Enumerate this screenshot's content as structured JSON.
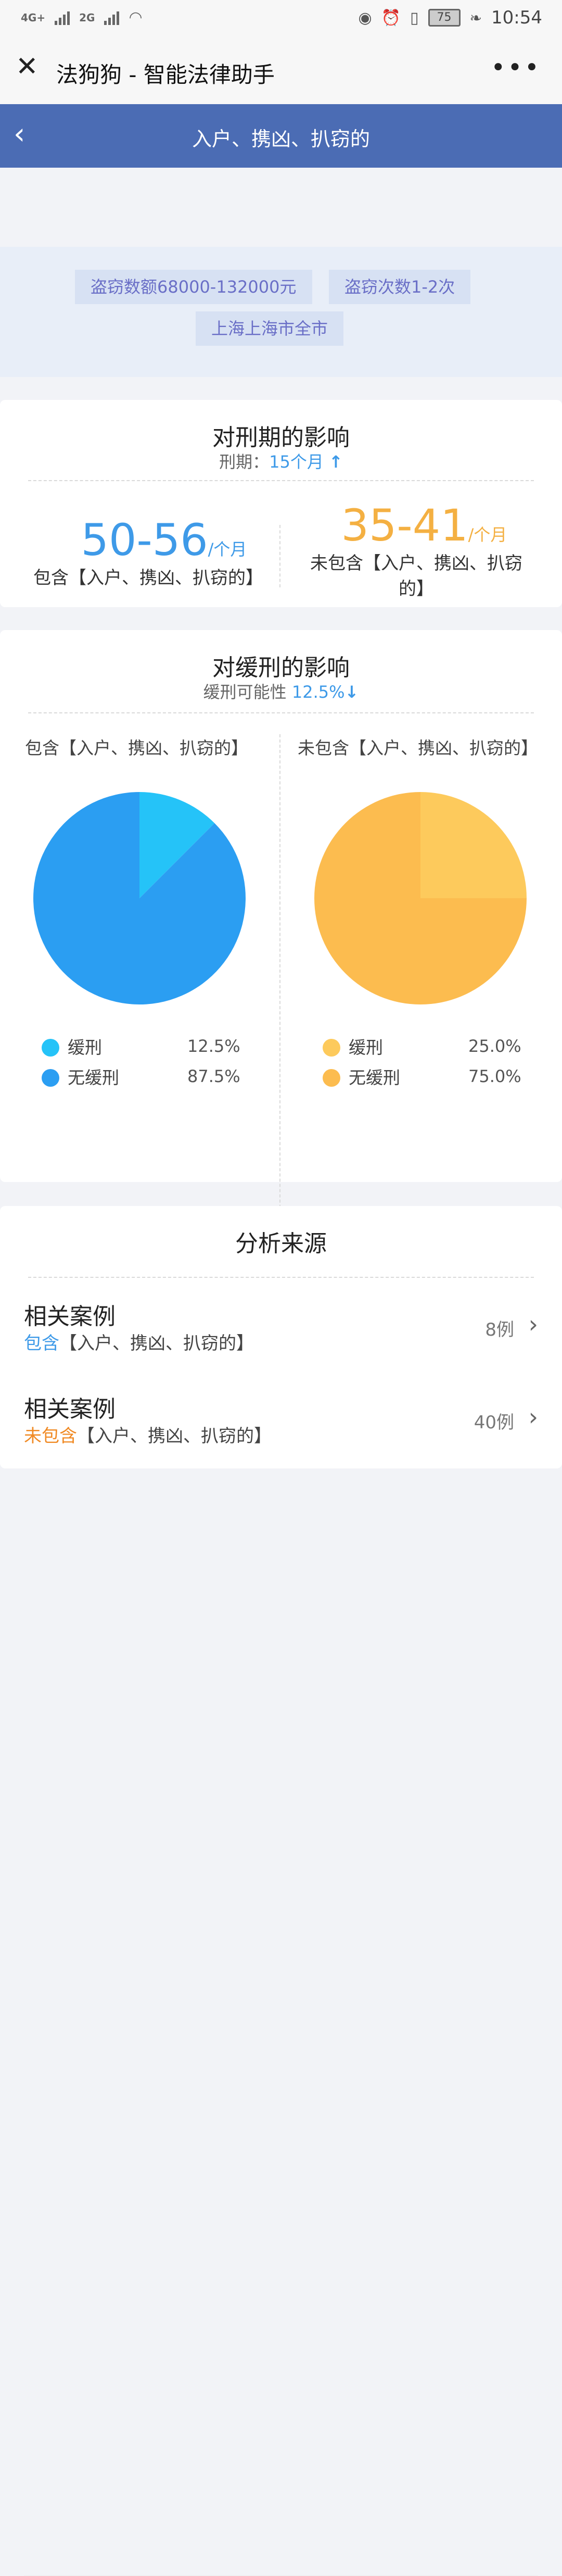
{
  "status": {
    "network_left": "4G+",
    "network_right": "2G",
    "battery": "75",
    "time": "10:54"
  },
  "titlebar": {
    "title": "法狗狗 - 智能法律助手"
  },
  "navbar": {
    "title": "入户、携凶、扒窃的"
  },
  "tags": [
    "盗窃数额68000-132000元",
    "盗窃次数1-2次",
    "上海上海市全市"
  ],
  "sentence": {
    "title": "对刑期的影响",
    "sub_label": "刑期：",
    "sub_value": "15个月",
    "sub_arrow": "↑",
    "included": {
      "value": "50-56",
      "unit": "/个月",
      "label": "包含【入户、携凶、扒窃的】",
      "color": "#3e9ae8"
    },
    "excluded": {
      "value": "35-41",
      "unit": "/个月",
      "label_line1": "未包含【入户、携凶、扒窃",
      "label_line2": "的】",
      "color": "#f4b042"
    }
  },
  "probation": {
    "title": "对缓刑的影响",
    "sub_label": "缓刑可能性",
    "sub_value": "12.5%",
    "sub_arrow": "↓",
    "left_label": "包含【入户、携凶、扒窃的】",
    "right_label": "未包含【入户、携凶、扒窃的】"
  },
  "chart_data": [
    {
      "type": "pie",
      "title": "包含【入户、携凶、扒窃的】",
      "categories": [
        "缓刑",
        "无缓刑"
      ],
      "values": [
        12.5,
        87.5
      ],
      "value_labels": [
        "12.5%",
        "87.5%"
      ],
      "colors": [
        "#25c3f8",
        "#2b9ef2"
      ]
    },
    {
      "type": "pie",
      "title": "未包含【入户、携凶、扒窃的】",
      "categories": [
        "缓刑",
        "无缓刑"
      ],
      "values": [
        25.0,
        75.0
      ],
      "value_labels": [
        "25.0%",
        "75.0%"
      ],
      "colors": [
        "#fdca5c",
        "#fcbc4f"
      ]
    }
  ],
  "sources": {
    "title": "分析来源",
    "items": [
      {
        "title": "相关案例",
        "prefix": "包含",
        "rest": "【入户、携凶、扒窃的】",
        "count": "8例",
        "prefix_color": "#3e9ae8"
      },
      {
        "title": "相关案例",
        "prefix": "未包含",
        "rest": "【入户、携凶、扒窃的】",
        "count": "40例",
        "prefix_color": "#f08a24"
      }
    ]
  }
}
